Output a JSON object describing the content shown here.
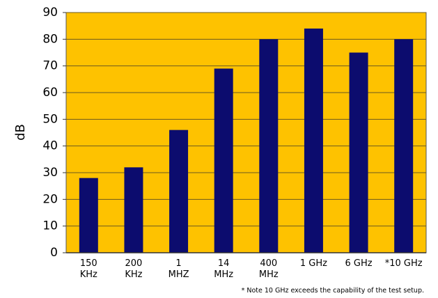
{
  "chart_data": {
    "type": "bar",
    "y_label": "dB",
    "categories": [
      "150\nKHz",
      "200\nKHz",
      "1\nMHZ",
      "14\nMHz",
      "400\nMHz",
      "1 GHz",
      "6 GHz",
      "*10 GHz"
    ],
    "values": [
      28,
      32,
      46,
      69,
      80,
      84,
      75,
      80
    ],
    "color": "#0c0c6e",
    "background": "#fec200",
    "ylim": [
      0,
      90
    ],
    "yticks": [
      0,
      10,
      20,
      30,
      40,
      50,
      60,
      70,
      80,
      90
    ],
    "grid": true,
    "note": "* Note 10 GHz exceeds the capability of the test setup."
  }
}
